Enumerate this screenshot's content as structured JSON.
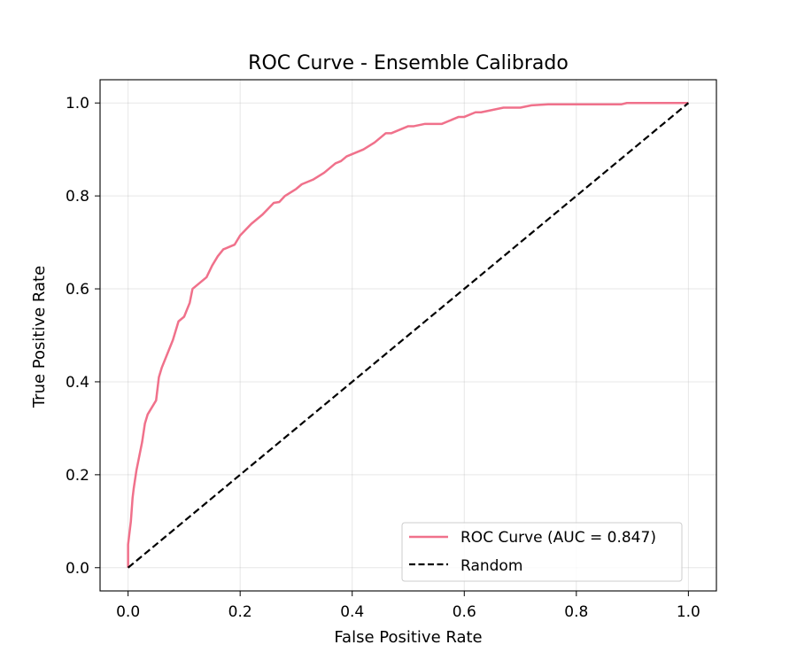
{
  "chart_data": {
    "type": "line",
    "title": "ROC Curve - Ensemble Calibrado",
    "xlabel": "False Positive Rate",
    "ylabel": "True Positive Rate",
    "xlim": [
      -0.05,
      1.05
    ],
    "ylim": [
      -0.05,
      1.05
    ],
    "xticks": [
      0.0,
      0.2,
      0.4,
      0.6,
      0.8,
      1.0
    ],
    "xtick_labels": [
      "0.0",
      "0.2",
      "0.4",
      "0.6",
      "0.8",
      "1.0"
    ],
    "yticks": [
      0.0,
      0.2,
      0.4,
      0.6,
      0.8,
      1.0
    ],
    "ytick_labels": [
      "0.0",
      "0.2",
      "0.4",
      "0.6",
      "0.8",
      "1.0"
    ],
    "grid": true,
    "legend_position": "lower right",
    "series": [
      {
        "name": "ROC Curve (AUC = 0.847)",
        "color": "#f0718b",
        "style": "solid",
        "x": [
          0.0,
          0.0,
          0.005,
          0.008,
          0.01,
          0.015,
          0.02,
          0.025,
          0.03,
          0.035,
          0.04,
          0.05,
          0.055,
          0.06,
          0.07,
          0.08,
          0.09,
          0.1,
          0.11,
          0.115,
          0.12,
          0.13,
          0.14,
          0.15,
          0.16,
          0.17,
          0.18,
          0.19,
          0.2,
          0.22,
          0.24,
          0.26,
          0.27,
          0.28,
          0.3,
          0.31,
          0.32,
          0.33,
          0.35,
          0.36,
          0.37,
          0.38,
          0.39,
          0.4,
          0.41,
          0.42,
          0.44,
          0.46,
          0.47,
          0.48,
          0.5,
          0.51,
          0.53,
          0.56,
          0.58,
          0.59,
          0.6,
          0.62,
          0.63,
          0.65,
          0.67,
          0.69,
          0.7,
          0.72,
          0.75,
          0.8,
          0.88,
          0.89,
          0.95,
          1.0
        ],
        "y": [
          0.0,
          0.05,
          0.1,
          0.15,
          0.17,
          0.21,
          0.24,
          0.27,
          0.31,
          0.33,
          0.34,
          0.36,
          0.41,
          0.43,
          0.46,
          0.49,
          0.53,
          0.54,
          0.57,
          0.6,
          0.605,
          0.615,
          0.625,
          0.65,
          0.67,
          0.685,
          0.69,
          0.695,
          0.715,
          0.74,
          0.76,
          0.785,
          0.787,
          0.8,
          0.815,
          0.825,
          0.83,
          0.835,
          0.85,
          0.86,
          0.87,
          0.875,
          0.885,
          0.89,
          0.895,
          0.9,
          0.915,
          0.935,
          0.935,
          0.94,
          0.95,
          0.95,
          0.955,
          0.955,
          0.965,
          0.97,
          0.97,
          0.98,
          0.98,
          0.985,
          0.99,
          0.99,
          0.99,
          0.995,
          0.997,
          0.997,
          0.997,
          1.0,
          1.0,
          1.0
        ]
      },
      {
        "name": "Random",
        "color": "#000000",
        "style": "dashed",
        "x": [
          0.0,
          1.0
        ],
        "y": [
          0.0,
          1.0
        ]
      }
    ]
  }
}
